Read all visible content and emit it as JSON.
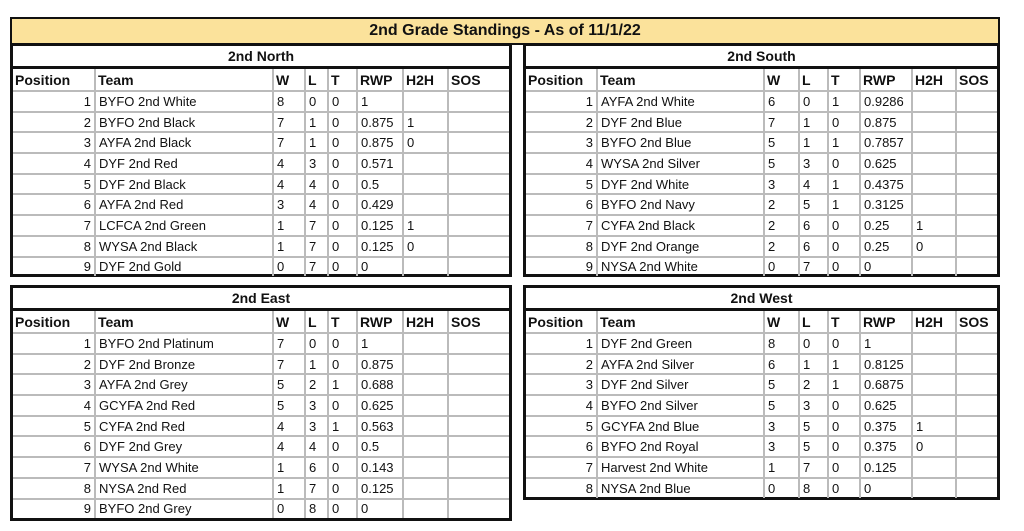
{
  "title": "2nd Grade Standings - As of 11/1/22",
  "columns": [
    "Position",
    "Team",
    "W",
    "L",
    "T",
    "RWP",
    "H2H",
    "SOS"
  ],
  "divisions": [
    {
      "name": "2nd North",
      "rows": [
        [
          "1",
          "BYFO 2nd White",
          "8",
          "0",
          "0",
          "1",
          "",
          ""
        ],
        [
          "2",
          "BYFO 2nd Black",
          "7",
          "1",
          "0",
          "0.875",
          "1",
          ""
        ],
        [
          "3",
          "AYFA 2nd Black",
          "7",
          "1",
          "0",
          "0.875",
          "0",
          ""
        ],
        [
          "4",
          "DYF 2nd Red",
          "4",
          "3",
          "0",
          "0.571",
          "",
          ""
        ],
        [
          "5",
          "DYF 2nd Black",
          "4",
          "4",
          "0",
          "0.5",
          "",
          ""
        ],
        [
          "6",
          "AYFA 2nd Red",
          "3",
          "4",
          "0",
          "0.429",
          "",
          ""
        ],
        [
          "7",
          "LCFCA 2nd Green",
          "1",
          "7",
          "0",
          "0.125",
          "1",
          ""
        ],
        [
          "8",
          "WYSA 2nd Black",
          "1",
          "7",
          "0",
          "0.125",
          "0",
          ""
        ],
        [
          "9",
          "DYF 2nd Gold",
          "0",
          "7",
          "0",
          "0",
          "",
          ""
        ]
      ]
    },
    {
      "name": "2nd South",
      "rows": [
        [
          "1",
          "AYFA 2nd White",
          "6",
          "0",
          "1",
          "0.9286",
          "",
          ""
        ],
        [
          "2",
          "DYF 2nd Blue",
          "7",
          "1",
          "0",
          "0.875",
          "",
          ""
        ],
        [
          "3",
          "BYFO 2nd Blue",
          "5",
          "1",
          "1",
          "0.7857",
          "",
          ""
        ],
        [
          "4",
          "WYSA 2nd Silver",
          "5",
          "3",
          "0",
          "0.625",
          "",
          ""
        ],
        [
          "5",
          "DYF 2nd White",
          "3",
          "4",
          "1",
          "0.4375",
          "",
          ""
        ],
        [
          "6",
          "BYFO 2nd Navy",
          "2",
          "5",
          "1",
          "0.3125",
          "",
          ""
        ],
        [
          "7",
          "CYFA 2nd Black",
          "2",
          "6",
          "0",
          "0.25",
          "1",
          ""
        ],
        [
          "8",
          "DYF 2nd Orange",
          "2",
          "6",
          "0",
          "0.25",
          "0",
          ""
        ],
        [
          "9",
          "NYSA 2nd White",
          "0",
          "7",
          "0",
          "0",
          "",
          ""
        ]
      ]
    },
    {
      "name": "2nd East",
      "rows": [
        [
          "1",
          "BYFO 2nd Platinum",
          "7",
          "0",
          "0",
          "1",
          "",
          ""
        ],
        [
          "2",
          "DYF 2nd Bronze",
          "7",
          "1",
          "0",
          "0.875",
          "",
          ""
        ],
        [
          "3",
          "AYFA 2nd Grey",
          "5",
          "2",
          "1",
          "0.688",
          "",
          ""
        ],
        [
          "4",
          "GCYFA 2nd Red",
          "5",
          "3",
          "0",
          "0.625",
          "",
          ""
        ],
        [
          "5",
          "CYFA 2nd Red",
          "4",
          "3",
          "1",
          "0.563",
          "",
          ""
        ],
        [
          "6",
          "DYF 2nd Grey",
          "4",
          "4",
          "0",
          "0.5",
          "",
          ""
        ],
        [
          "7",
          "WYSA 2nd White",
          "1",
          "6",
          "0",
          "0.143",
          "",
          ""
        ],
        [
          "8",
          "NYSA 2nd Red",
          "1",
          "7",
          "0",
          "0.125",
          "",
          ""
        ],
        [
          "9",
          "BYFO 2nd Grey",
          "0",
          "8",
          "0",
          "0",
          "",
          ""
        ]
      ]
    },
    {
      "name": "2nd West",
      "rows": [
        [
          "1",
          "DYF 2nd Green",
          "8",
          "0",
          "0",
          "1",
          "",
          ""
        ],
        [
          "2",
          "AYFA 2nd Silver",
          "6",
          "1",
          "1",
          "0.8125",
          "",
          ""
        ],
        [
          "3",
          "DYF 2nd Silver",
          "5",
          "2",
          "1",
          "0.6875",
          "",
          ""
        ],
        [
          "4",
          "BYFO 2nd Silver",
          "5",
          "3",
          "0",
          "0.625",
          "",
          ""
        ],
        [
          "5",
          "GCYFA 2nd Blue",
          "3",
          "5",
          "0",
          "0.375",
          "1",
          ""
        ],
        [
          "6",
          "BYFO 2nd Royal",
          "3",
          "5",
          "0",
          "0.375",
          "0",
          ""
        ],
        [
          "7",
          "Harvest 2nd White",
          "1",
          "7",
          "0",
          "0.125",
          "",
          ""
        ],
        [
          "8",
          "NYSA 2nd Blue",
          "0",
          "8",
          "0",
          "0",
          "",
          ""
        ]
      ]
    }
  ]
}
